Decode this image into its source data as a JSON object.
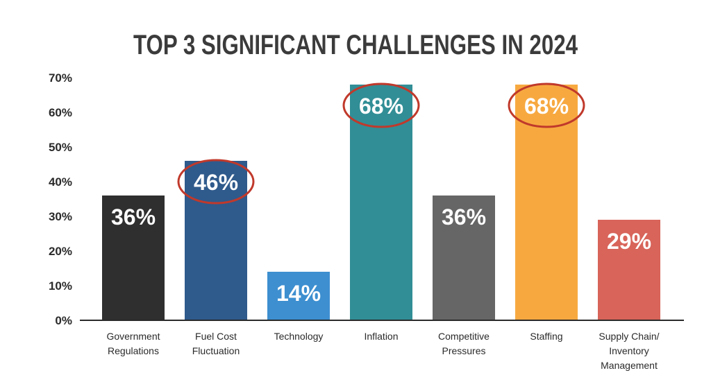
{
  "chart_data": {
    "type": "bar",
    "title": "TOP 3 SIGNIFICANT CHALLENGES IN 2024",
    "categories": [
      [
        "Government",
        "Regulations"
      ],
      [
        "Fuel Cost",
        "Fluctuation"
      ],
      [
        "Technology"
      ],
      [
        "Inflation"
      ],
      [
        "Competitive",
        "Pressures"
      ],
      [
        "Staffing"
      ],
      [
        "Supply Chain/",
        "Inventory",
        "Management"
      ]
    ],
    "values": [
      36,
      46,
      14,
      68,
      36,
      68,
      29
    ],
    "data_labels": [
      "36%",
      "46%",
      "14%",
      "68%",
      "36%",
      "68%",
      "29%"
    ],
    "bar_colors": [
      "#2f2f2f",
      "#2f5a8c",
      "#3d8fd0",
      "#318e96",
      "#666666",
      "#f7a940",
      "#d8645a"
    ],
    "highlighted": [
      false,
      true,
      false,
      true,
      false,
      true,
      false
    ],
    "highlight_color": "#c0392b",
    "yticks": [
      "0%",
      "10%",
      "20%",
      "30%",
      "40%",
      "50%",
      "60%",
      "70%"
    ],
    "ylim": [
      0,
      70
    ],
    "xlabel": "",
    "ylabel": "",
    "grid": false,
    "legend": "none"
  }
}
